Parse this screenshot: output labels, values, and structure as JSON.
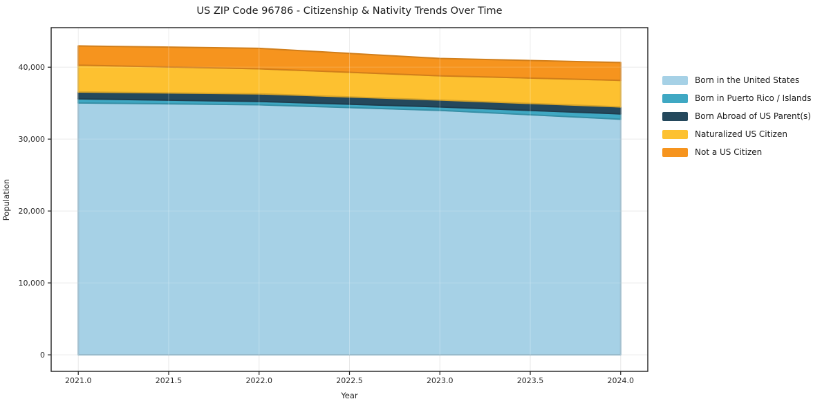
{
  "title": "US ZIP Code 96786 - Citizenship & Nativity Trends Over Time",
  "chart_data": {
    "type": "area",
    "stacked": true,
    "title": "US ZIP Code 96786 - Citizenship & Nativity Trends Over Time",
    "xlabel": "Year",
    "ylabel": "Population",
    "x": [
      2021,
      2022,
      2023,
      2024
    ],
    "series": [
      {
        "name": "Born in the United States",
        "color": "#A6D1E6",
        "values": [
          35030,
          34780,
          34000,
          32770
        ]
      },
      {
        "name": "Born in Puerto Rico / Islands",
        "color": "#3FA8C3",
        "values": [
          570,
          460,
          480,
          740
        ]
      },
      {
        "name": "Born Abroad of US Parent(s)",
        "color": "#24485C",
        "values": [
          960,
          1060,
          960,
          970
        ]
      },
      {
        "name": "Naturalized US Citizen",
        "color": "#FDC130",
        "values": [
          3730,
          3480,
          3370,
          3690
        ]
      },
      {
        "name": "Not a US Citizen",
        "color": "#F6941E",
        "values": [
          2670,
          2840,
          2410,
          2480
        ]
      }
    ],
    "stack_totals": [
      42960,
      42620,
      41220,
      40650
    ],
    "xlim": [
      2020.85,
      2024.15
    ],
    "ylim": [
      -2300,
      45500
    ],
    "x_ticks": [
      {
        "v": 2021.0,
        "label": "2021.0"
      },
      {
        "v": 2021.5,
        "label": "2021.5"
      },
      {
        "v": 2022.0,
        "label": "2022.0"
      },
      {
        "v": 2022.5,
        "label": "2022.5"
      },
      {
        "v": 2023.0,
        "label": "2023.0"
      },
      {
        "v": 2023.5,
        "label": "2023.5"
      },
      {
        "v": 2024.0,
        "label": "2024.0"
      }
    ],
    "y_ticks": [
      {
        "v": 0,
        "label": "0"
      },
      {
        "v": 10000,
        "label": "10,000"
      },
      {
        "v": 20000,
        "label": "20,000"
      },
      {
        "v": 30000,
        "label": "30,000"
      },
      {
        "v": 40000,
        "label": "40,000"
      }
    ],
    "grid": true,
    "legend_position": "right-outside",
    "colors": {
      "grid": "#e7e7e7",
      "spine": "#1f1f1f",
      "tick_text": "#262626",
      "background": "#ffffff"
    }
  }
}
